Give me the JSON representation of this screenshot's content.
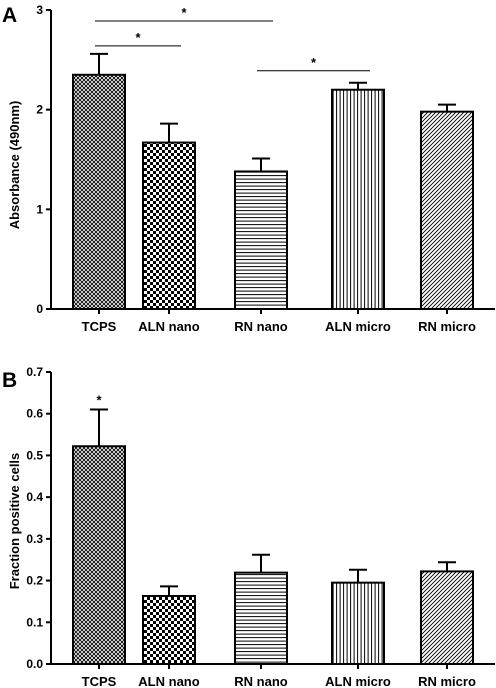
{
  "chart_data": [
    {
      "panel": "A",
      "type": "bar",
      "title": "",
      "xlabel": "",
      "ylabel": "Absorbance (490nm)",
      "ylim": [
        0,
        3
      ],
      "yticks": [
        "0",
        "1",
        "2",
        "3"
      ],
      "categories": [
        "TCPS",
        "ALN nano",
        "RN nano",
        "ALN micro",
        "RN micro"
      ],
      "values": [
        2.35,
        1.67,
        1.38,
        2.2,
        1.98
      ],
      "errors": [
        0.21,
        0.19,
        0.13,
        0.07,
        0.07
      ],
      "patterns": [
        "crosshatch",
        "checker",
        "horizontal",
        "vertical",
        "diagonal"
      ],
      "significance": [
        {
          "from": 0,
          "to": 2,
          "level": 2.89,
          "label": "*"
        },
        {
          "from": 0,
          "to": 1,
          "level": 2.64,
          "label": "*"
        },
        {
          "from": 2,
          "to": 3,
          "level": 2.39,
          "label": "*"
        }
      ],
      "grid": false
    },
    {
      "panel": "B",
      "type": "bar",
      "title": "",
      "xlabel": "",
      "ylabel": "Fraction positive cells",
      "ylim": [
        0,
        0.7
      ],
      "yticks": [
        "0.0",
        "0.1",
        "0.2",
        "0.3",
        "0.4",
        "0.5",
        "0.6",
        "0.7"
      ],
      "categories": [
        "TCPS",
        "ALN nano",
        "RN nano",
        "ALN micro",
        "RN micro"
      ],
      "values": [
        0.522,
        0.163,
        0.219,
        0.195,
        0.222
      ],
      "errors": [
        0.088,
        0.023,
        0.043,
        0.031,
        0.022
      ],
      "patterns": [
        "crosshatch",
        "checker",
        "horizontal",
        "vertical",
        "diagonal"
      ],
      "bar_stars": [
        {
          "index": 0,
          "label": "*"
        }
      ],
      "grid": false
    }
  ]
}
